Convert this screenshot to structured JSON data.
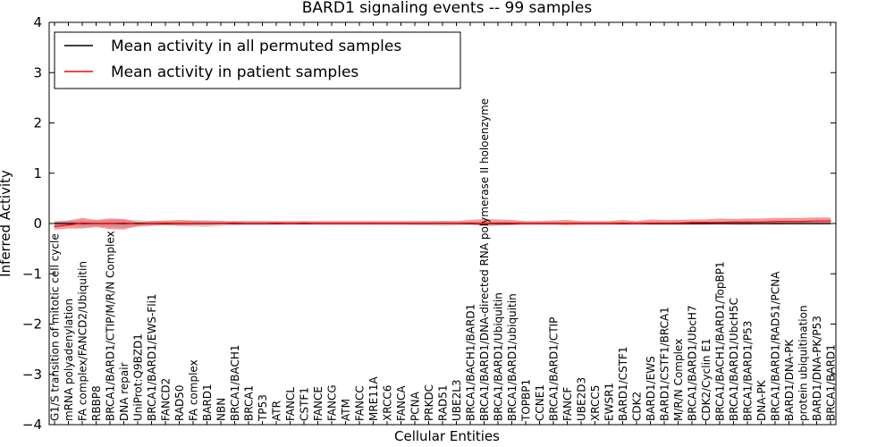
{
  "chart_data": {
    "type": "line",
    "title": "BARD1 signaling events -- 99 samples",
    "xlabel": "Cellular Entities",
    "ylabel": "Inferred Activity",
    "ylim": [
      -4,
      4
    ],
    "yticks": [
      -4,
      -3,
      -2,
      -1,
      0,
      1,
      2,
      3,
      4
    ],
    "ytick_labels": [
      "−4",
      "−3",
      "−2",
      "−1",
      "0",
      "1",
      "2",
      "3",
      "4"
    ],
    "grid": false,
    "legend_position": "top-left",
    "categories": [
      "G1/S transition of mitotic cell cycle",
      "mRNA polyadenylation",
      "FA complex/FANCD2/Ubiquitin",
      "RBBP8",
      "BRCA1/BARD1/CTIP/M/R/N Complex",
      "DNA repair",
      "UniProt:Q9BZD1",
      "BRCA1/BARD1/EWS-Fli1",
      "FANCD2",
      "RAD50",
      "FA complex",
      "BARD1",
      "NBN",
      "BRCA1/BACH1",
      "BRCA1",
      "TP53",
      "ATR",
      "FANCL",
      "CSTF1",
      "FANCE",
      "FANCG",
      "ATM",
      "FANCC",
      "MRE11A",
      "XRCC6",
      "FANCA",
      "PCNA",
      "PRKDC",
      "RAD51",
      "UBE2L3",
      "BRCA1/BACH1/BARD1",
      "BRCA1/BARD1/DNA-directed RNA polymerase II holoenzyme",
      "BRCA1/BARD1/Ubiquitin",
      "BRCA1/BARD1/ubiquitin",
      "TOPBP1",
      "CCNE1",
      "BRCA1/BARD1/CTIP",
      "FANCF",
      "UBE2D3",
      "XRCC5",
      "EWSR1",
      "BARD1/CSTF1",
      "CDK2",
      "BARD1/EWS",
      "BARD1/CSTF1/BRCA1",
      "M/R/N Complex",
      "BRCA1/BARD1/UbcH7",
      "CDK2/Cyclin E1",
      "BRCA1/BACH1/BARD1/TopBP1",
      "BRCA1/BARD1/UbcH5C",
      "BRCA1/BARD1/P53",
      "DNA-PK",
      "BRCA1/BARD1/RAD51/PCNA",
      "BARD1/DNA-PK",
      "protein ubiquitination",
      "BARD1/DNA-PK/P53",
      "BRCA1/BARD1"
    ],
    "series": [
      {
        "name": "Mean activity in all permuted samples",
        "color": "#000000",
        "values": [
          0.0,
          0.0,
          0.0,
          0.0,
          0.0,
          0.0,
          0.0,
          0.0,
          0.0,
          0.0,
          0.0,
          0.0,
          0.0,
          0.0,
          0.0,
          0.0,
          0.0,
          0.0,
          0.0,
          0.0,
          0.0,
          0.0,
          0.0,
          0.0,
          0.0,
          0.0,
          0.0,
          0.0,
          0.0,
          0.0,
          0.0,
          0.0,
          0.0,
          0.0,
          0.0,
          0.0,
          0.0,
          0.0,
          0.0,
          0.0,
          0.0,
          0.0,
          0.0,
          0.0,
          0.0,
          0.0,
          0.0,
          0.0,
          0.0,
          0.0,
          0.0,
          0.0,
          0.0,
          0.0,
          0.0,
          0.0,
          0.0
        ],
        "band_lower": [
          -0.04,
          -0.05,
          -0.06,
          -0.06,
          -0.07,
          -0.08,
          -0.07,
          -0.05,
          -0.04,
          -0.05,
          -0.06,
          -0.07,
          -0.05,
          -0.04,
          -0.04,
          -0.04,
          -0.03,
          -0.03,
          -0.03,
          -0.03,
          -0.03,
          -0.03,
          -0.03,
          -0.03,
          -0.03,
          -0.03,
          -0.04,
          -0.04,
          -0.05,
          -0.04,
          -0.03,
          -0.03,
          -0.03,
          -0.03,
          -0.03,
          -0.03,
          -0.03,
          -0.03,
          -0.03,
          -0.03,
          -0.03,
          -0.03,
          -0.03,
          -0.03,
          -0.03,
          -0.03,
          -0.03,
          -0.03,
          -0.03,
          -0.03,
          -0.03,
          -0.03,
          -0.03,
          -0.03,
          -0.03,
          -0.03,
          -0.03
        ],
        "band_upper": [
          0.04,
          0.05,
          0.06,
          0.06,
          0.07,
          0.08,
          0.07,
          0.05,
          0.04,
          0.05,
          0.06,
          0.07,
          0.05,
          0.04,
          0.04,
          0.04,
          0.03,
          0.03,
          0.03,
          0.03,
          0.03,
          0.03,
          0.03,
          0.03,
          0.03,
          0.03,
          0.04,
          0.04,
          0.05,
          0.04,
          0.03,
          0.03,
          0.03,
          0.03,
          0.03,
          0.03,
          0.03,
          0.03,
          0.03,
          0.03,
          0.03,
          0.03,
          0.03,
          0.03,
          0.03,
          0.03,
          0.03,
          0.03,
          0.03,
          0.03,
          0.03,
          0.03,
          0.03,
          0.03,
          0.03,
          0.03,
          0.03
        ]
      },
      {
        "name": "Mean activity in patient samples",
        "color": "#ff0000",
        "values": [
          -0.06,
          -0.03,
          0.01,
          0.0,
          0.0,
          0.01,
          -0.01,
          0.0,
          0.01,
          0.0,
          0.0,
          0.0,
          0.0,
          0.01,
          0.0,
          0.0,
          0.01,
          0.0,
          0.01,
          0.0,
          0.0,
          0.0,
          0.0,
          0.0,
          0.0,
          0.0,
          0.0,
          0.0,
          0.0,
          0.0,
          0.01,
          0.0,
          0.01,
          0.01,
          0.0,
          0.0,
          0.0,
          0.0,
          0.0,
          0.0,
          0.0,
          0.01,
          0.0,
          0.01,
          0.01,
          0.01,
          0.02,
          0.02,
          0.02,
          0.03,
          0.03,
          0.03,
          0.04,
          0.04,
          0.04,
          0.05,
          0.05
        ],
        "band_lower": [
          -0.12,
          -0.1,
          -0.1,
          -0.07,
          -0.11,
          -0.12,
          -0.05,
          -0.04,
          -0.03,
          -0.04,
          -0.03,
          -0.03,
          -0.02,
          -0.02,
          -0.02,
          -0.02,
          -0.02,
          -0.02,
          -0.02,
          -0.02,
          -0.02,
          -0.02,
          -0.02,
          -0.02,
          -0.02,
          -0.02,
          -0.02,
          -0.02,
          -0.02,
          -0.02,
          -0.02,
          -0.05,
          -0.04,
          -0.03,
          -0.02,
          -0.02,
          -0.02,
          -0.03,
          -0.02,
          -0.02,
          -0.02,
          -0.02,
          -0.02,
          -0.02,
          -0.02,
          -0.02,
          -0.02,
          -0.02,
          -0.01,
          -0.02,
          -0.02,
          -0.01,
          -0.02,
          -0.01,
          -0.01,
          -0.01,
          -0.01
        ],
        "band_upper": [
          0.04,
          0.06,
          0.11,
          0.07,
          0.1,
          0.09,
          0.03,
          0.05,
          0.06,
          0.07,
          0.06,
          0.05,
          0.05,
          0.05,
          0.05,
          0.05,
          0.05,
          0.05,
          0.05,
          0.05,
          0.05,
          0.05,
          0.05,
          0.05,
          0.05,
          0.05,
          0.05,
          0.05,
          0.05,
          0.05,
          0.07,
          0.09,
          0.08,
          0.07,
          0.05,
          0.05,
          0.06,
          0.07,
          0.05,
          0.05,
          0.05,
          0.07,
          0.05,
          0.08,
          0.07,
          0.07,
          0.08,
          0.08,
          0.1,
          0.09,
          0.1,
          0.1,
          0.11,
          0.11,
          0.11,
          0.12,
          0.12
        ]
      }
    ]
  }
}
